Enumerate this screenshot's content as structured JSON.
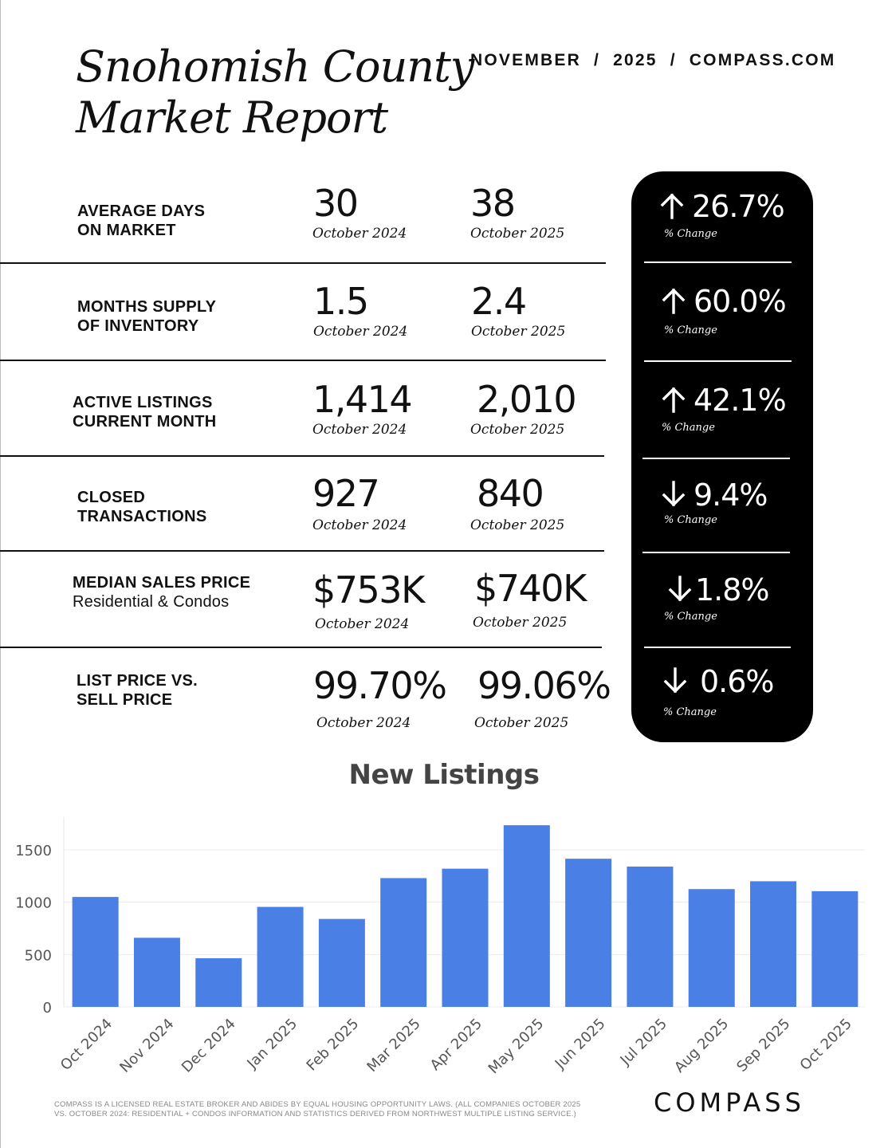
{
  "header": {
    "title_line1": "Snohomish County",
    "title_line2": "Market Report",
    "dateline": "NOVEMBER  /  2025  /  COMPASS.COM"
  },
  "metrics": [
    {
      "label_line1": "AVERAGE DAYS",
      "label_line2": "ON MARKET",
      "value_prev": "30",
      "period_prev": "October 2024",
      "value_curr": "38",
      "period_curr": "October 2025",
      "direction": "up",
      "change": "26.7%",
      "change_label": "% Change"
    },
    {
      "label_line1": "MONTHS SUPPLY",
      "label_line2": "OF INVENTORY",
      "value_prev": "1.5",
      "period_prev": "October 2024",
      "value_curr": "2.4",
      "period_curr": "October 2025",
      "direction": "up",
      "change": "60.0%",
      "change_label": "% Change"
    },
    {
      "label_line1": "ACTIVE LISTINGS",
      "label_line2": "CURRENT MONTH",
      "value_prev": "1,414",
      "period_prev": "October 2024",
      "value_curr": "2,010",
      "period_curr": "October 2025",
      "direction": "up",
      "change": "42.1%",
      "change_label": "% Change"
    },
    {
      "label_line1": "CLOSED",
      "label_line2": "TRANSACTIONS",
      "value_prev": "927",
      "period_prev": "October 2024",
      "value_curr": "840",
      "period_curr": "October 2025",
      "direction": "down",
      "change": "9.4%",
      "change_label": "% Change"
    },
    {
      "label_line1": "MEDIAN SALES PRICE",
      "label_line2": "Residential & Condos",
      "value_prev": "$753K",
      "period_prev": "October 2024",
      "value_curr": "$740K",
      "period_curr": "October 2025",
      "direction": "down",
      "change": "1.8%",
      "change_label": "% Change"
    },
    {
      "label_line1": "LIST PRICE VS.",
      "label_line2": "SELL PRICE",
      "value_prev": "99.70%",
      "period_prev": "October 2024",
      "value_curr": "99.06%",
      "period_curr": "October 2025",
      "direction": "down",
      "change": "0.6%",
      "change_label": "% Change"
    }
  ],
  "chart_data": {
    "type": "bar",
    "title": "New Listings",
    "categories": [
      "Oct 2024",
      "Nov 2024",
      "Dec 2024",
      "Jan 2025",
      "Feb 2025",
      "Mar 2025",
      "Apr 2025",
      "May 2025",
      "Jun 2025",
      "Jul 2025",
      "Aug 2025",
      "Sep 2025",
      "Oct 2025"
    ],
    "values": [
      1050,
      660,
      465,
      955,
      840,
      1230,
      1320,
      1735,
      1415,
      1340,
      1125,
      1200,
      1105
    ],
    "yticks": [
      0,
      500,
      1000,
      1500
    ],
    "ylim": [
      0,
      1800
    ],
    "xlabel": "",
    "ylabel": "",
    "grid": true,
    "bar_color": "#4a7fe6"
  },
  "footer": {
    "disclaimer": "COMPASS IS A LICENSED REAL ESTATE BROKER AND ABIDES BY EQUAL HOUSING OPPORTUNITY LAWS. (ALL COMPANIES OCTOBER 2025 VS. OCTOBER 2024: RESIDENTIAL + CONDOS INFORMATION AND STATISTICS DERIVED FROM NORTHWEST MULTIPLE LISTING SERVICE.)",
    "logo_text": "COMPASS"
  }
}
